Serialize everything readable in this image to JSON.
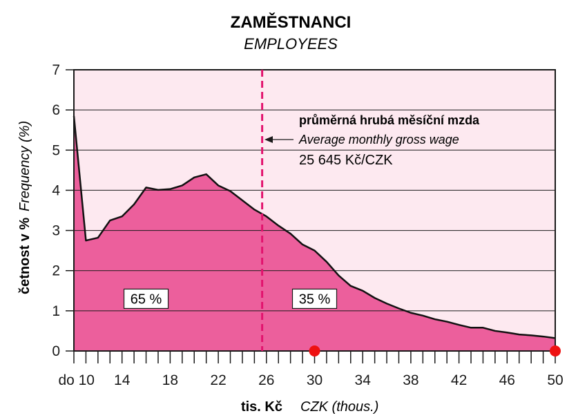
{
  "chart_data": {
    "type": "area",
    "title": "ZAMĚSTNANCI",
    "subtitle": "EMPLOYEES",
    "xlabel": "tis. Kč",
    "xlabel_en": "CZK (thous.)",
    "ylabel": "četnost v %",
    "ylabel_en": "Frequency (%)",
    "xlim": [
      10,
      50
    ],
    "ylim": [
      0,
      7
    ],
    "x_ticks": [
      "do 10",
      "14",
      "18",
      "22",
      "26",
      "30",
      "34",
      "38",
      "42",
      "46",
      "50"
    ],
    "x_tick_values": [
      10,
      14,
      18,
      22,
      26,
      30,
      34,
      38,
      42,
      46,
      50
    ],
    "y_ticks": [
      "0",
      "1",
      "2",
      "3",
      "4",
      "5",
      "6",
      "7"
    ],
    "y_tick_values": [
      0,
      1,
      2,
      3,
      4,
      5,
      6,
      7
    ],
    "grid": true,
    "fill_color": "#ec5f9c",
    "plot_background": "#fde9f0",
    "line_color": "#111111",
    "series": [
      {
        "x": [
          10,
          11,
          12,
          13,
          14,
          15,
          16,
          17,
          18,
          19,
          20,
          21,
          22,
          23,
          24,
          25,
          26,
          27,
          28,
          29,
          30,
          31,
          32,
          33,
          34,
          35,
          36,
          37,
          38,
          39,
          40,
          41,
          42,
          43,
          44,
          45,
          46,
          47,
          48,
          49,
          50
        ],
        "y": [
          5.85,
          2.75,
          2.82,
          3.25,
          3.35,
          3.65,
          4.07,
          4.01,
          4.03,
          4.12,
          4.32,
          4.4,
          4.12,
          3.98,
          3.75,
          3.52,
          3.35,
          3.12,
          2.92,
          2.65,
          2.5,
          2.22,
          1.88,
          1.62,
          1.5,
          1.32,
          1.18,
          1.06,
          0.95,
          0.88,
          0.79,
          0.73,
          0.65,
          0.58,
          0.58,
          0.5,
          0.46,
          0.41,
          0.39,
          0.36,
          0.32
        ]
      }
    ],
    "average": {
      "x": 25.645,
      "label_cz": "průměrná hrubá měsíční mzda",
      "label_en": "Average monthly gross wage",
      "value": "25 645 Kč/CZK",
      "color": "#e2136e"
    },
    "shares": [
      {
        "label": "65 %",
        "x": 16
      },
      {
        "label": "35 %",
        "x": 30
      }
    ],
    "markers": {
      "color": "#ee1111",
      "points": [
        {
          "x": 30,
          "y": 0
        },
        {
          "x": 50,
          "y": 0
        }
      ]
    }
  }
}
